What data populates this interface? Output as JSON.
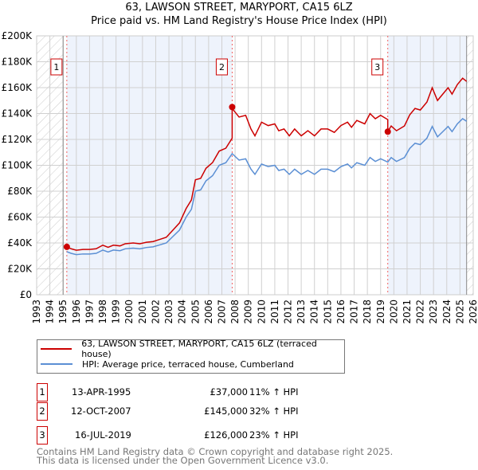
{
  "chart_data": {
    "type": "line",
    "title": "63, LAWSON STREET, MARYPORT, CA15 6LZ",
    "subtitle": "Price paid vs. HM Land Registry's House Price Index (HPI)",
    "xlim": [
      1993,
      2026
    ],
    "ylim": [
      0,
      200000
    ],
    "yticks": [
      0,
      20000,
      40000,
      60000,
      80000,
      100000,
      120000,
      140000,
      160000,
      180000,
      200000
    ],
    "ytick_labels": [
      "£0",
      "£20K",
      "£40K",
      "£60K",
      "£80K",
      "£100K",
      "£120K",
      "£140K",
      "£160K",
      "£180K",
      "£200K"
    ],
    "xticks": [
      "1993",
      "1994",
      "1995",
      "1996",
      "1997",
      "1998",
      "1999",
      "2000",
      "2001",
      "2002",
      "2003",
      "2004",
      "2005",
      "2006",
      "2007",
      "2008",
      "2009",
      "2010",
      "2011",
      "2012",
      "2013",
      "2014",
      "2015",
      "2016",
      "2017",
      "2018",
      "2019",
      "2020",
      "2021",
      "2022",
      "2023",
      "2024",
      "2025",
      "2026"
    ],
    "grid": true,
    "series": [
      {
        "name": "63, LAWSON STREET, MARYPORT, CA15 6LZ (terraced house)",
        "color": "#cc0000",
        "derived_from_hpi_ratios": [
          [
            1995.28,
            1.11
          ],
          [
            2007.78,
            1.32
          ],
          [
            2019.54,
            1.23
          ]
        ]
      },
      {
        "name": "HPI: Average price, terraced house, Cumberland",
        "color": "#5b8fd4",
        "x": [
          1995.28,
          1995.6,
          1996,
          1996.5,
          1997,
          1997.5,
          1998,
          1998.4,
          1998.8,
          1999.3,
          1999.7,
          2000.3,
          2000.8,
          2001.3,
          2001.8,
          2002.3,
          2002.8,
          2003.3,
          2003.8,
          2004.3,
          2004.7,
          2005,
          2005.4,
          2005.8,
          2006.3,
          2006.8,
          2007.3,
          2007.78,
          2008.3,
          2008.8,
          2009.2,
          2009.5,
          2010,
          2010.5,
          2011,
          2011.3,
          2011.7,
          2012.1,
          2012.5,
          2013,
          2013.5,
          2014,
          2014.5,
          2015,
          2015.5,
          2016,
          2016.5,
          2016.8,
          2017.2,
          2017.8,
          2018.2,
          2018.6,
          2019,
          2019.54,
          2019.8,
          2020.2,
          2020.8,
          2021.2,
          2021.6,
          2022,
          2022.5,
          2022.9,
          2023.3,
          2023.7,
          2024.1,
          2024.4,
          2024.8,
          2025.2,
          2025.5
        ],
        "y": [
          33300,
          32000,
          31000,
          31500,
          31500,
          32000,
          34500,
          33000,
          34500,
          34000,
          35500,
          36000,
          35500,
          36500,
          37000,
          38500,
          40000,
          45000,
          50000,
          60000,
          66000,
          80000,
          81000,
          88000,
          92000,
          100000,
          102000,
          109000,
          104000,
          105000,
          97000,
          93000,
          101000,
          99000,
          100000,
          96000,
          97000,
          93000,
          97000,
          93000,
          96000,
          93000,
          97000,
          97000,
          95000,
          99000,
          101000,
          98000,
          102000,
          100000,
          106000,
          103000,
          105000,
          102500,
          106000,
          103000,
          106000,
          113000,
          117000,
          116000,
          121000,
          130000,
          122000,
          126000,
          130000,
          126000,
          132000,
          136000,
          134000
        ]
      }
    ],
    "sales": [
      {
        "id": "1",
        "x": 1995.28,
        "y": 37000,
        "date": "13-APR-1995",
        "price": "£37,000",
        "hpi": "11% ↑ HPI"
      },
      {
        "id": "2",
        "x": 2007.78,
        "y": 145000,
        "date": "12-OCT-2007",
        "price": "£145,000",
        "hpi": "32% ↑ HPI"
      },
      {
        "id": "3",
        "x": 2019.54,
        "y": 126000,
        "date": "16-JUL-2019",
        "price": "£126,000",
        "hpi": "23% ↑ HPI"
      }
    ],
    "shaded_ranges": [
      [
        1995.28,
        2007.78
      ],
      [
        2019.54,
        2025.5
      ]
    ],
    "hatched_ranges": [
      [
        1993,
        1995
      ],
      [
        2025.5,
        2026
      ]
    ]
  },
  "legend": {
    "red": "63, LAWSON STREET, MARYPORT, CA15 6LZ (terraced house)",
    "blue": "HPI: Average price, terraced house, Cumberland"
  },
  "footer": {
    "line1": "Contains HM Land Registry data © Crown copyright and database right 2025.",
    "line2": "This data is licensed under the Open Government Licence v3.0."
  }
}
